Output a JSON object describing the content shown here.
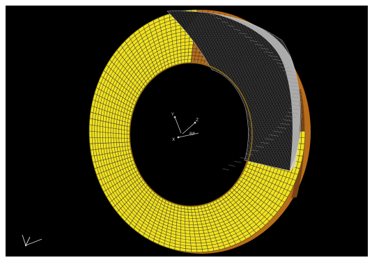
{
  "viewer": {
    "background_color": "#000000",
    "mesh_colors": {
      "structured": "#f2e21d",
      "unstructured": "#111111",
      "edge_side": "#b96d1a",
      "mesh_lines": "#333333",
      "axis": "#d8d8d8"
    },
    "origin_label": "RP",
    "triad_labels": [
      "Y",
      "Z",
      "X"
    ],
    "icons": {
      "global_triad": "axis-triad-icon",
      "origin_triad": "coordinate-triad-icon"
    }
  }
}
